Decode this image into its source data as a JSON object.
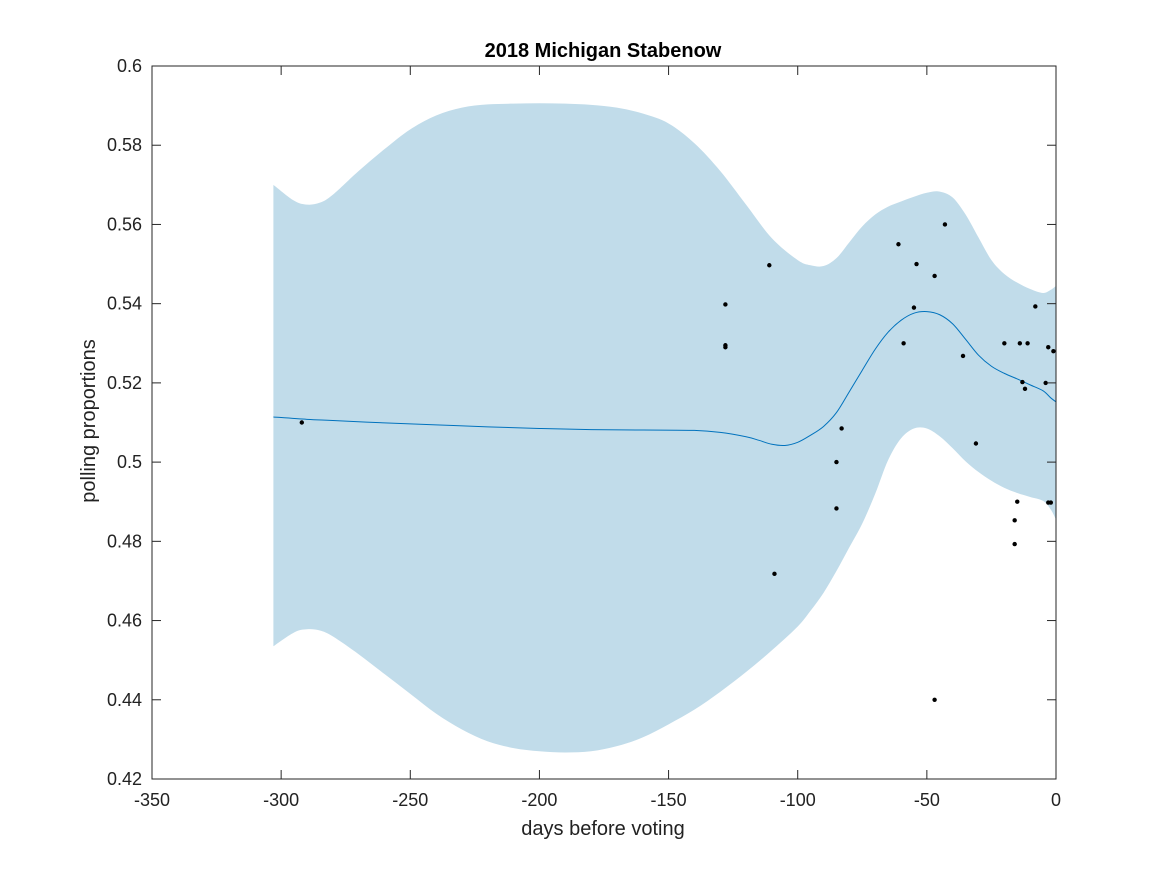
{
  "chart_data": {
    "type": "line",
    "title": "2018 Michigan Stabenow",
    "xlabel": "days before voting",
    "ylabel": "polling proportions",
    "xlim": [
      -350,
      0
    ],
    "ylim": [
      0.42,
      0.6
    ],
    "xticks": [
      -350,
      -300,
      -250,
      -200,
      -150,
      -100,
      -50,
      0
    ],
    "xtick_labels": [
      "-350",
      "-300",
      "-250",
      "-200",
      "-150",
      "-100",
      "-50",
      "0"
    ],
    "yticks": [
      0.42,
      0.44,
      0.46,
      0.48,
      0.5,
      0.52,
      0.54,
      0.56,
      0.58,
      0.6
    ],
    "ytick_labels": [
      "0.42",
      "0.44",
      "0.46",
      "0.48",
      "0.5",
      "0.52",
      "0.54",
      "0.56",
      "0.58",
      "0.6"
    ],
    "grid": false,
    "colors": {
      "band": "#c1dcea",
      "line": "#0072bd",
      "points": "#000000",
      "axis": "#262626"
    },
    "band": {
      "x": [
        -303,
        -295,
        -290,
        -285,
        -280,
        -270,
        -260,
        -250,
        -240,
        -230,
        -220,
        -210,
        -200,
        -190,
        -180,
        -170,
        -160,
        -150,
        -140,
        -130,
        -120,
        -110,
        -100,
        -95,
        -90,
        -85,
        -80,
        -75,
        -70,
        -65,
        -60,
        -55,
        -50,
        -45,
        -40,
        -35,
        -30,
        -25,
        -20,
        -15,
        -10,
        -5,
        -2,
        0
      ],
      "upper": [
        0.57,
        0.566,
        0.565,
        0.5655,
        0.5675,
        0.5735,
        0.579,
        0.584,
        0.5875,
        0.5895,
        0.5903,
        0.5905,
        0.5906,
        0.5905,
        0.5902,
        0.5895,
        0.588,
        0.5855,
        0.5805,
        0.5735,
        0.565,
        0.5565,
        0.551,
        0.5497,
        0.5495,
        0.5515,
        0.5555,
        0.5595,
        0.5625,
        0.5645,
        0.5658,
        0.567,
        0.568,
        0.5683,
        0.5668,
        0.5625,
        0.5567,
        0.551,
        0.5475,
        0.5453,
        0.5437,
        0.5427,
        0.5435,
        0.5445
      ],
      "lower": [
        0.4535,
        0.457,
        0.4578,
        0.4575,
        0.456,
        0.4515,
        0.4465,
        0.4415,
        0.4365,
        0.4325,
        0.4295,
        0.4278,
        0.427,
        0.4267,
        0.427,
        0.4283,
        0.4305,
        0.4338,
        0.4375,
        0.442,
        0.447,
        0.4525,
        0.4585,
        0.4625,
        0.467,
        0.4725,
        0.4785,
        0.4845,
        0.492,
        0.5005,
        0.506,
        0.5085,
        0.5085,
        0.5065,
        0.5035,
        0.5002,
        0.4975,
        0.4953,
        0.4935,
        0.4922,
        0.4912,
        0.4902,
        0.488,
        0.4855
      ]
    },
    "series": [
      {
        "x": [
          -303,
          -290,
          -280,
          -260,
          -240,
          -220,
          -200,
          -180,
          -160,
          -140,
          -130,
          -120,
          -115,
          -110,
          -105,
          -100,
          -95,
          -90,
          -85,
          -80,
          -75,
          -70,
          -65,
          -60,
          -55,
          -50,
          -45,
          -40,
          -35,
          -30,
          -25,
          -20,
          -15,
          -10,
          -5,
          -2,
          0
        ],
        "y": [
          0.5114,
          0.5108,
          0.5105,
          0.5099,
          0.5094,
          0.5089,
          0.5085,
          0.5082,
          0.5081,
          0.508,
          0.5075,
          0.5064,
          0.5055,
          0.5045,
          0.5042,
          0.505,
          0.5068,
          0.509,
          0.5125,
          0.5178,
          0.5232,
          0.5285,
          0.5328,
          0.5358,
          0.5376,
          0.538,
          0.5372,
          0.5349,
          0.531,
          0.527,
          0.5242,
          0.5224,
          0.521,
          0.5195,
          0.518,
          0.5162,
          0.5152
        ]
      }
    ],
    "points": {
      "x": [
        -292,
        -128,
        -128,
        -128,
        -111,
        -109,
        -85,
        -85,
        -83,
        -61,
        -59,
        -55,
        -54,
        -47,
        -47,
        -43,
        -36,
        -31,
        -20,
        -16,
        -16,
        -15,
        -14,
        -13,
        -12,
        -11,
        -8,
        -4,
        -3,
        -3,
        -2,
        -1
      ],
      "y": [
        0.51,
        0.5398,
        0.5295,
        0.529,
        0.5497,
        0.4718,
        0.5,
        0.4883,
        0.5085,
        0.555,
        0.53,
        0.539,
        0.55,
        0.547,
        0.44,
        0.56,
        0.5268,
        0.5047,
        0.53,
        0.4853,
        0.4793,
        0.49,
        0.53,
        0.5202,
        0.5185,
        0.53,
        0.5393,
        0.52,
        0.529,
        0.4898,
        0.4898,
        0.528
      ]
    }
  }
}
